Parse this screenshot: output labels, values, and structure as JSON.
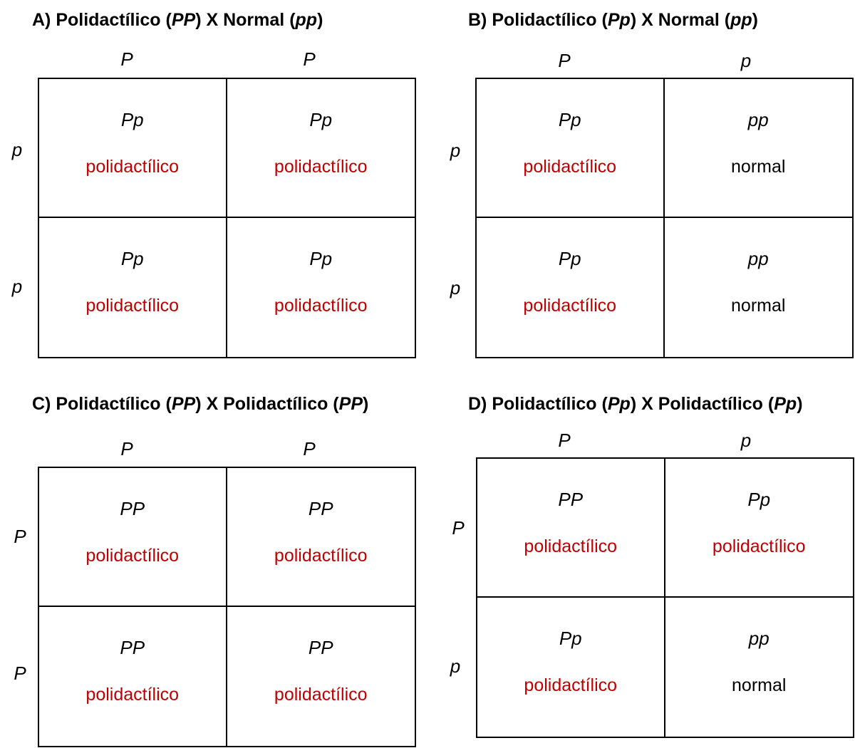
{
  "colors": {
    "polidactilico": "#c00000",
    "normal": "#000000",
    "border": "#000000"
  },
  "panels": [
    {
      "id": "A",
      "title": [
        {
          "t": "A) Polidactílico (",
          "i": false
        },
        {
          "t": "PP",
          "i": true
        },
        {
          "t": ") X Normal (",
          "i": false
        },
        {
          "t": "pp",
          "i": true
        },
        {
          "t": ")",
          "i": false
        }
      ],
      "top_alleles": [
        "P",
        "P"
      ],
      "left_alleles": [
        "p",
        "p"
      ],
      "cells": [
        {
          "genotype": "Pp",
          "phenotype": "polidactílico",
          "color": "red"
        },
        {
          "genotype": "Pp",
          "phenotype": "polidactílico",
          "color": "red"
        },
        {
          "genotype": "Pp",
          "phenotype": "polidactílico",
          "color": "red"
        },
        {
          "genotype": "Pp",
          "phenotype": "polidactílico",
          "color": "red"
        }
      ]
    },
    {
      "id": "B",
      "title": [
        {
          "t": "B) Polidactílico (",
          "i": false
        },
        {
          "t": "Pp",
          "i": true
        },
        {
          "t": ") X Normal (",
          "i": false
        },
        {
          "t": "pp",
          "i": true
        },
        {
          "t": ")",
          "i": false
        }
      ],
      "top_alleles": [
        "P",
        "p"
      ],
      "left_alleles": [
        "p",
        "p"
      ],
      "cells": [
        {
          "genotype": "Pp",
          "phenotype": "polidactílico",
          "color": "red"
        },
        {
          "genotype": "pp",
          "phenotype": "normal",
          "color": "black"
        },
        {
          "genotype": "Pp",
          "phenotype": "polidactílico",
          "color": "red"
        },
        {
          "genotype": "pp",
          "phenotype": "normal",
          "color": "black"
        }
      ]
    },
    {
      "id": "C",
      "title": [
        {
          "t": "C) Polidactílico (",
          "i": false
        },
        {
          "t": "PP",
          "i": true
        },
        {
          "t": ") X Polidactílico (",
          "i": false
        },
        {
          "t": "PP",
          "i": true
        },
        {
          "t": ")",
          "i": false
        }
      ],
      "top_alleles": [
        "P",
        "P"
      ],
      "left_alleles": [
        "P",
        "P"
      ],
      "cells": [
        {
          "genotype": "PP",
          "phenotype": "polidactílico",
          "color": "red"
        },
        {
          "genotype": "PP",
          "phenotype": "polidactílico",
          "color": "red"
        },
        {
          "genotype": "PP",
          "phenotype": "polidactílico",
          "color": "red"
        },
        {
          "genotype": "PP",
          "phenotype": "polidactílico",
          "color": "red"
        }
      ]
    },
    {
      "id": "D",
      "title": [
        {
          "t": "D) Polidactílico (",
          "i": false
        },
        {
          "t": "Pp",
          "i": true
        },
        {
          "t": ") X Polidactílico (",
          "i": false
        },
        {
          "t": "Pp",
          "i": true
        },
        {
          "t": ")",
          "i": false
        }
      ],
      "top_alleles": [
        "P",
        "p"
      ],
      "left_alleles": [
        "P",
        "p"
      ],
      "cells": [
        {
          "genotype": "PP",
          "phenotype": "polidactílico",
          "color": "red"
        },
        {
          "genotype": "Pp",
          "phenotype": "polidactílico",
          "color": "red"
        },
        {
          "genotype": "Pp",
          "phenotype": "polidactílico",
          "color": "red"
        },
        {
          "genotype": "pp",
          "phenotype": "normal",
          "color": "black"
        }
      ]
    }
  ]
}
